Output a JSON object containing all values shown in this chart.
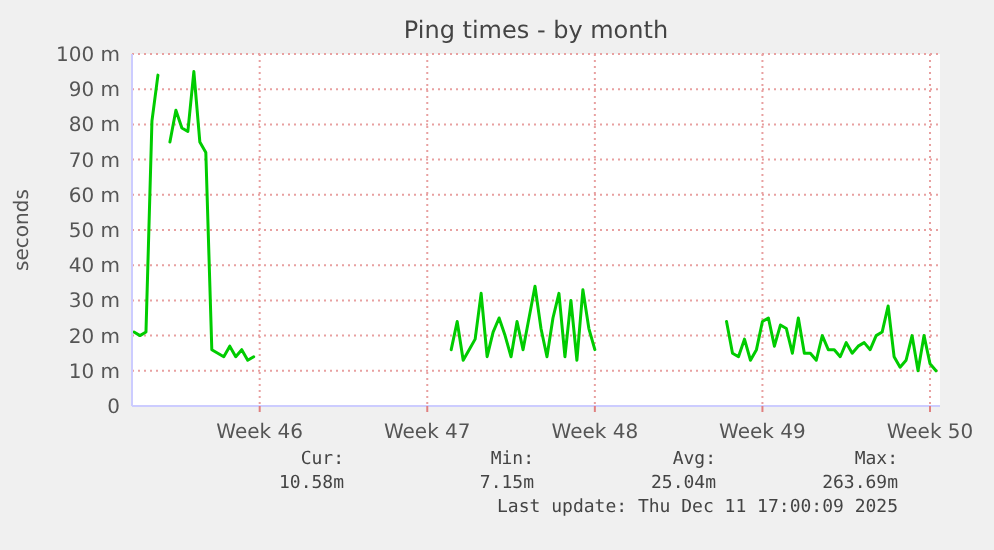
{
  "chart_data": {
    "type": "line",
    "title": "Ping times - by month",
    "ylabel": "seconds",
    "categories": [
      null,
      null,
      null,
      null,
      null,
      null,
      null,
      null,
      null,
      null,
      null,
      null,
      null,
      null,
      null,
      null,
      null,
      null,
      null,
      null,
      null,
      "Week 46",
      null,
      null,
      null,
      null,
      null,
      null,
      null,
      null,
      null,
      null,
      null,
      null,
      null,
      null,
      null,
      null,
      null,
      null,
      null,
      null,
      null,
      null,
      null,
      null,
      null,
      null,
      null,
      "Week 47",
      null,
      null,
      null,
      null,
      null,
      null,
      null,
      null,
      null,
      null,
      null,
      null,
      null,
      null,
      null,
      null,
      null,
      null,
      null,
      null,
      null,
      null,
      null,
      null,
      null,
      null,
      null,
      "Week 48",
      null,
      null,
      null,
      null,
      null,
      null,
      null,
      null,
      null,
      null,
      null,
      null,
      null,
      null,
      null,
      null,
      null,
      null,
      null,
      null,
      null,
      null,
      null,
      null,
      null,
      null,
      null,
      "Week 49",
      null,
      null,
      null,
      null,
      null,
      null,
      null,
      null,
      null,
      null,
      null,
      null,
      null,
      null,
      null,
      null,
      null,
      null,
      null,
      null,
      null,
      null,
      null,
      null,
      null,
      null,
      null,
      "Week 50",
      null
    ],
    "series": [
      {
        "color": "#00cc00",
        "values": [
          21,
          20,
          21,
          81,
          94,
          null,
          75,
          84,
          79,
          78,
          95,
          75,
          72,
          16,
          15,
          14,
          17,
          14,
          16,
          13,
          14,
          null,
          null,
          null,
          null,
          null,
          null,
          null,
          null,
          null,
          null,
          null,
          null,
          null,
          null,
          null,
          null,
          null,
          null,
          null,
          null,
          null,
          null,
          null,
          null,
          null,
          null,
          null,
          null,
          null,
          null,
          null,
          null,
          16,
          24,
          13,
          16,
          19,
          32,
          14,
          21,
          25,
          20,
          14,
          24,
          16,
          25,
          34,
          22,
          14,
          25,
          32,
          14,
          30,
          13,
          33,
          22,
          16,
          null,
          null,
          null,
          null,
          null,
          null,
          null,
          null,
          null,
          null,
          null,
          null,
          null,
          null,
          null,
          null,
          null,
          null,
          null,
          null,
          null,
          24,
          15,
          14,
          19,
          13,
          16,
          24,
          25,
          17,
          23,
          22,
          15,
          25,
          15,
          15,
          13,
          20,
          16,
          16,
          14,
          18,
          15,
          17,
          18,
          16,
          20,
          21,
          28.4,
          14,
          11,
          13,
          20,
          10,
          20,
          12,
          10
        ]
      }
    ],
    "ylim": [
      0,
      100
    ],
    "yticks": [
      0,
      {
        "value": 10,
        "label": "10 m"
      },
      {
        "value": 20,
        "label": "20 m"
      },
      {
        "value": 30,
        "label": "30 m"
      },
      {
        "value": 40,
        "label": "40 m"
      },
      {
        "value": 50,
        "label": "50 m"
      },
      {
        "value": 60,
        "label": "60 m"
      },
      {
        "value": 70,
        "label": "70 m"
      },
      {
        "value": 80,
        "label": "80 m"
      },
      {
        "value": 90,
        "label": "90 m"
      },
      {
        "value": 100,
        "label": "100 m"
      }
    ],
    "grid": true,
    "annotations": [
      "Cur:",
      "10.58m",
      "Min:",
      "7.15m",
      "Avg:",
      "25.04m",
      "Max:",
      "263.69m",
      "Last update: Thu Dec 11 17:00:09 2025"
    ]
  }
}
